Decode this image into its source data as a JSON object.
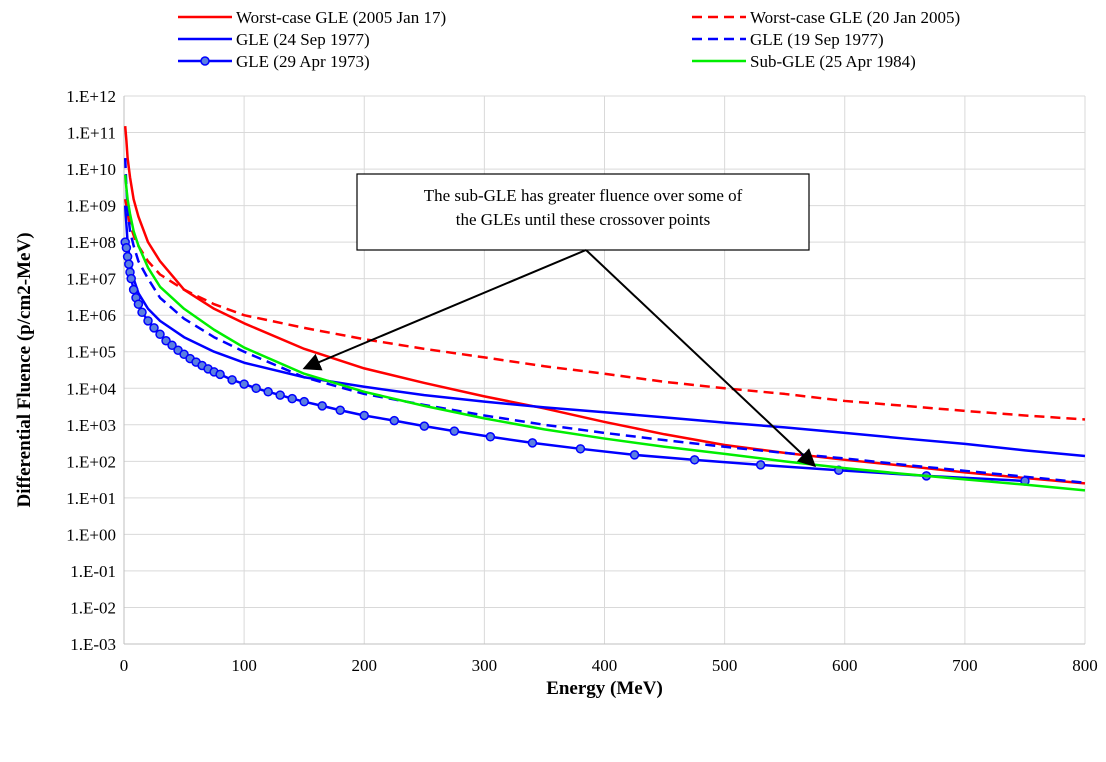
{
  "chart_data": {
    "type": "line",
    "title": "",
    "xlabel": "Energy (MeV)",
    "ylabel": "Differential Fluence (p/cm2-MeV)",
    "xlim": [
      0,
      800
    ],
    "ylim": [
      0.001,
      1000000000000
    ],
    "y_scale": "log",
    "grid": true,
    "legend_position": "top",
    "x_ticks": [
      "0",
      "100",
      "200",
      "300",
      "400",
      "500",
      "600",
      "700",
      "800"
    ],
    "y_ticks": [
      "1.E-03",
      "1.E-02",
      "1.E-01",
      "1.E+00",
      "1.E+01",
      "1.E+02",
      "1.E+03",
      "1.E+04",
      "1.E+05",
      "1.E+06",
      "1.E+07",
      "1.E+08",
      "1.E+09",
      "1.E+10",
      "1.E+11",
      "1.E+12"
    ],
    "series": [
      {
        "name": "Worst-case GLE (2005 Jan 17)",
        "color": "#ff0000",
        "dash": "solid",
        "marker": "none",
        "x": [
          1,
          2,
          3,
          5,
          8,
          12,
          20,
          30,
          50,
          75,
          100,
          150,
          200,
          250,
          300,
          350,
          400,
          450,
          500,
          550,
          600,
          650,
          700,
          750,
          800
        ],
        "y": [
          150000000000,
          60000000000,
          20000000000,
          6000000000,
          1500000000,
          500000000,
          100000000,
          30000000,
          5000000,
          1500000,
          600000,
          120000,
          35000,
          14000,
          6000,
          2800,
          1200,
          550,
          280,
          170,
          110,
          75,
          50,
          35,
          25
        ]
      },
      {
        "name": "Worst-case GLE (20 Jan 2005)",
        "color": "#ff0000",
        "dash": "dashed",
        "marker": "none",
        "x": [
          1,
          2,
          3,
          5,
          10,
          20,
          30,
          50,
          75,
          100,
          150,
          200,
          250,
          300,
          350,
          400,
          450,
          500,
          550,
          600,
          650,
          700,
          750,
          800
        ],
        "y": [
          1500000000,
          1000000000,
          600000000,
          300000000,
          100000000,
          30000000,
          13000000,
          5000000,
          2000000,
          1000000,
          450000,
          220000,
          120000,
          70000,
          40000,
          25000,
          15000,
          10000,
          7000,
          4500,
          3300,
          2400,
          1800,
          1400
        ]
      },
      {
        "name": "GLE (24 Sep 1977)",
        "color": "#0000ff",
        "dash": "solid",
        "marker": "none",
        "x": [
          1,
          2,
          3,
          5,
          8,
          12,
          20,
          30,
          50,
          75,
          100,
          150,
          200,
          250,
          300,
          350,
          400,
          450,
          500,
          550,
          600,
          650,
          700,
          750,
          800
        ],
        "y": [
          1000000000,
          300000000,
          100000000,
          30000000,
          10000000,
          4000000,
          1500000,
          700000,
          250000,
          100000,
          50000,
          20000,
          11000,
          6500,
          4300,
          3000,
          2200,
          1600,
          1150,
          850,
          600,
          420,
          300,
          200,
          140
        ]
      },
      {
        "name": "GLE (19 Sep 1977)",
        "color": "#0000ff",
        "dash": "dashed",
        "marker": "none",
        "x": [
          1,
          2,
          3,
          5,
          8,
          12,
          20,
          30,
          50,
          75,
          100,
          150,
          200,
          250,
          300,
          350,
          400,
          450,
          500,
          550,
          600,
          650,
          700,
          750,
          800
        ],
        "y": [
          20000000000,
          3000000000,
          800000000,
          200000000,
          80000000,
          30000000,
          10000000,
          3000000,
          800000,
          250000,
          100000,
          20000,
          7000,
          3500,
          1800,
          1000,
          600,
          380,
          250,
          170,
          120,
          80,
          55,
          38,
          26
        ]
      },
      {
        "name": "GLE (29 Apr 1973)",
        "color": "#0000ff",
        "dash": "solid",
        "marker": "circle",
        "x": [
          1,
          2,
          3,
          4,
          5,
          6,
          8,
          10,
          12,
          15,
          20,
          25,
          30,
          35,
          40,
          45,
          50,
          55,
          60,
          65,
          70,
          75,
          80,
          90,
          100,
          110,
          120,
          130,
          140,
          150,
          165,
          180,
          200,
          225,
          250,
          275,
          305,
          340,
          380,
          425,
          475,
          530,
          595,
          668,
          750
        ],
        "y": [
          100000000,
          70000000,
          40000000,
          25000000,
          15000000,
          10000000,
          5000000,
          3000000,
          2000000,
          1200000,
          700000,
          450000,
          300000,
          200000,
          150000,
          110000,
          85000,
          65000,
          52000,
          42000,
          34000,
          28000,
          24000,
          17000,
          13000,
          10000,
          8000,
          6500,
          5200,
          4300,
          3300,
          2500,
          1800,
          1300,
          920,
          670,
          470,
          320,
          220,
          150,
          110,
          80,
          57,
          40,
          29
        ]
      },
      {
        "name": "Sub-GLE (25 Apr 1984)",
        "color": "#00ee00",
        "dash": "solid",
        "marker": "none",
        "x": [
          1,
          2,
          3,
          5,
          8,
          12,
          20,
          30,
          50,
          75,
          100,
          150,
          200,
          250,
          300,
          350,
          400,
          450,
          500,
          550,
          600,
          650,
          700,
          750,
          800
        ],
        "y": [
          7000000000,
          3000000000,
          1500000000,
          600000000,
          200000000,
          80000000,
          20000000,
          6000000,
          1500000,
          400000,
          130000,
          25000,
          8000,
          3300,
          1500,
          750,
          420,
          250,
          160,
          100,
          65,
          45,
          32,
          23,
          16
        ]
      }
    ],
    "annotation": {
      "lines": [
        "The sub-GLE has greater fluence over some of",
        "the GLEs  until these crossover points"
      ],
      "arrow_targets": [
        {
          "x": 150,
          "y": 35000
        },
        {
          "x": 575,
          "y": 75
        }
      ]
    }
  }
}
